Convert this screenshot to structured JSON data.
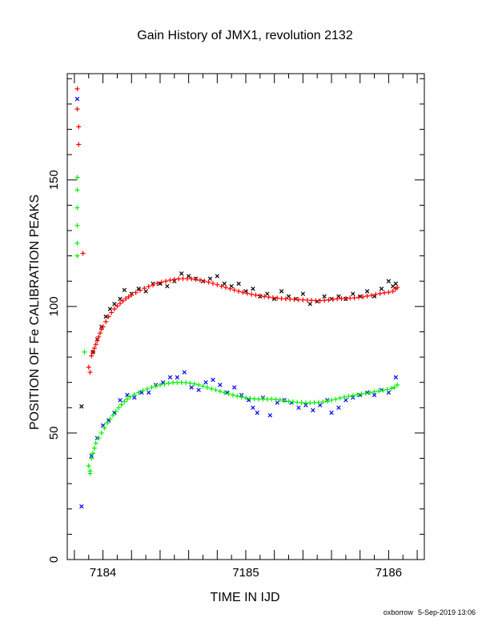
{
  "chart_data": {
    "type": "scatter",
    "title": "Gain History of JMX1, revolution 2132",
    "xlabel": "TIME IN IJD",
    "ylabel": "POSITION OF Fe CALIBRATION PEAKS",
    "xlim": [
      7183.75,
      7186.25
    ],
    "ylim": [
      0,
      192
    ],
    "xticks": [
      7184,
      7185,
      7186
    ],
    "yticks": [
      0,
      50,
      100,
      150
    ],
    "grid": false,
    "legend": "none",
    "series": [
      {
        "marker": "x",
        "color": "#000000",
        "points": [
          [
            7183.85,
            60.5
          ],
          [
            7183.93,
            82
          ],
          [
            7183.96,
            87
          ],
          [
            7183.99,
            92
          ],
          [
            7184.02,
            96
          ],
          [
            7184.05,
            99
          ],
          [
            7184.08,
            101
          ],
          [
            7184.12,
            103
          ],
          [
            7184.15,
            106.5
          ],
          [
            7184.2,
            105
          ],
          [
            7184.25,
            107
          ],
          [
            7184.3,
            106
          ],
          [
            7184.35,
            109
          ],
          [
            7184.4,
            109
          ],
          [
            7184.45,
            108
          ],
          [
            7184.5,
            110
          ],
          [
            7184.55,
            113
          ],
          [
            7184.6,
            112
          ],
          [
            7184.65,
            111
          ],
          [
            7184.7,
            110
          ],
          [
            7184.75,
            111
          ],
          [
            7184.8,
            112
          ],
          [
            7184.85,
            109
          ],
          [
            7184.9,
            108
          ],
          [
            7184.95,
            109
          ],
          [
            7185.0,
            106
          ],
          [
            7185.05,
            107
          ],
          [
            7185.1,
            104
          ],
          [
            7185.15,
            105
          ],
          [
            7185.2,
            103
          ],
          [
            7185.25,
            106
          ],
          [
            7185.3,
            104
          ],
          [
            7185.35,
            103
          ],
          [
            7185.4,
            105
          ],
          [
            7185.45,
            101
          ],
          [
            7185.5,
            102
          ],
          [
            7185.55,
            104
          ],
          [
            7185.6,
            103
          ],
          [
            7185.65,
            104
          ],
          [
            7185.7,
            103
          ],
          [
            7185.75,
            105
          ],
          [
            7185.8,
            104
          ],
          [
            7185.85,
            106
          ],
          [
            7185.9,
            104
          ],
          [
            7185.95,
            107
          ],
          [
            7186.0,
            110
          ],
          [
            7186.03,
            108
          ],
          [
            7186.05,
            109
          ]
        ]
      },
      {
        "marker": "x",
        "color": "#0000ff",
        "points": [
          [
            7183.82,
            182
          ],
          [
            7183.85,
            21
          ],
          [
            7183.92,
            41
          ],
          [
            7183.96,
            48
          ],
          [
            7184.0,
            53
          ],
          [
            7184.04,
            55
          ],
          [
            7184.08,
            58
          ],
          [
            7184.12,
            63
          ],
          [
            7184.17,
            65
          ],
          [
            7184.22,
            64
          ],
          [
            7184.27,
            66
          ],
          [
            7184.32,
            66
          ],
          [
            7184.37,
            69
          ],
          [
            7184.42,
            70
          ],
          [
            7184.47,
            72
          ],
          [
            7184.52,
            72
          ],
          [
            7184.57,
            74
          ],
          [
            7184.62,
            68
          ],
          [
            7184.67,
            67
          ],
          [
            7184.72,
            70
          ],
          [
            7184.77,
            71
          ],
          [
            7184.82,
            69
          ],
          [
            7184.87,
            66
          ],
          [
            7184.92,
            68
          ],
          [
            7184.97,
            65
          ],
          [
            7185.02,
            63
          ],
          [
            7185.05,
            60
          ],
          [
            7185.08,
            58
          ],
          [
            7185.12,
            64
          ],
          [
            7185.17,
            57
          ],
          [
            7185.22,
            62
          ],
          [
            7185.27,
            63
          ],
          [
            7185.32,
            62
          ],
          [
            7185.37,
            60
          ],
          [
            7185.42,
            61
          ],
          [
            7185.47,
            59
          ],
          [
            7185.52,
            61
          ],
          [
            7185.57,
            63
          ],
          [
            7185.6,
            58
          ],
          [
            7185.65,
            60
          ],
          [
            7185.7,
            63
          ],
          [
            7185.75,
            64
          ],
          [
            7185.8,
            65
          ],
          [
            7185.85,
            66
          ],
          [
            7185.9,
            65
          ],
          [
            7185.95,
            67
          ],
          [
            7186.0,
            66
          ],
          [
            7186.05,
            72
          ]
        ]
      },
      {
        "marker": "+",
        "color": "#ff0000",
        "points": [
          [
            7183.82,
            186
          ],
          [
            7183.82,
            178
          ],
          [
            7183.83,
            171
          ],
          [
            7183.83,
            164
          ],
          [
            7183.86,
            121
          ],
          [
            7183.9,
            76
          ],
          [
            7183.91,
            74
          ],
          [
            7183.92,
            80.5
          ],
          [
            7183.93,
            82
          ],
          [
            7183.94,
            83.5
          ],
          [
            7183.95,
            85
          ],
          [
            7183.96,
            86.5
          ],
          [
            7183.97,
            88
          ],
          [
            7183.98,
            89.5
          ],
          [
            7183.99,
            91
          ],
          [
            7184.0,
            92
          ],
          [
            7184.02,
            94
          ],
          [
            7184.04,
            96
          ],
          [
            7184.06,
            97.6
          ],
          [
            7184.08,
            99
          ],
          [
            7184.1,
            100.2
          ],
          [
            7184.12,
            101.2
          ],
          [
            7184.14,
            102.2
          ],
          [
            7184.16,
            103.1
          ],
          [
            7184.18,
            103.8
          ],
          [
            7184.2,
            104.6
          ],
          [
            7184.23,
            105.5
          ],
          [
            7184.26,
            106.4
          ],
          [
            7184.29,
            107.2
          ],
          [
            7184.32,
            107.9
          ],
          [
            7184.35,
            108.5
          ],
          [
            7184.38,
            109.1
          ],
          [
            7184.41,
            109.6
          ],
          [
            7184.44,
            110
          ],
          [
            7184.47,
            110.4
          ],
          [
            7184.5,
            110.7
          ],
          [
            7184.53,
            110.9
          ],
          [
            7184.56,
            111
          ],
          [
            7184.59,
            111
          ],
          [
            7184.62,
            110.9
          ],
          [
            7184.65,
            110.7
          ],
          [
            7184.68,
            110.4
          ],
          [
            7184.71,
            110
          ],
          [
            7184.74,
            109.6
          ],
          [
            7184.77,
            109.1
          ],
          [
            7184.8,
            108.6
          ],
          [
            7184.83,
            108
          ],
          [
            7184.86,
            107.5
          ],
          [
            7184.89,
            107
          ],
          [
            7184.92,
            106.5
          ],
          [
            7184.95,
            106
          ],
          [
            7184.98,
            105.6
          ],
          [
            7185.01,
            105.2
          ],
          [
            7185.04,
            104.8
          ],
          [
            7185.07,
            104.5
          ],
          [
            7185.1,
            104.2
          ],
          [
            7185.13,
            103.9
          ],
          [
            7185.16,
            103.7
          ],
          [
            7185.19,
            103.5
          ],
          [
            7185.22,
            103.3
          ],
          [
            7185.25,
            103.1
          ],
          [
            7185.28,
            103
          ],
          [
            7185.31,
            102.9
          ],
          [
            7185.34,
            102.8
          ],
          [
            7185.37,
            102.7
          ],
          [
            7185.4,
            102.6
          ],
          [
            7185.43,
            102.5
          ],
          [
            7185.46,
            102.4
          ],
          [
            7185.49,
            102.3
          ],
          [
            7185.52,
            102.3
          ],
          [
            7185.55,
            102.4
          ],
          [
            7185.58,
            102.6
          ],
          [
            7185.61,
            102.8
          ],
          [
            7185.64,
            103
          ],
          [
            7185.67,
            103.1
          ],
          [
            7185.7,
            103.2
          ],
          [
            7185.73,
            103.3
          ],
          [
            7185.76,
            103.4
          ],
          [
            7185.79,
            103.6
          ],
          [
            7185.82,
            103.8
          ],
          [
            7185.85,
            104.1
          ],
          [
            7185.88,
            104.4
          ],
          [
            7185.91,
            104.8
          ],
          [
            7185.94,
            105.1
          ],
          [
            7185.97,
            105.4
          ],
          [
            7186.0,
            105.6
          ],
          [
            7186.03,
            106
          ],
          [
            7186.05,
            107
          ],
          [
            7186.06,
            107.5
          ]
        ]
      },
      {
        "marker": "+",
        "color": "#00ee00",
        "points": [
          [
            7183.82,
            151
          ],
          [
            7183.82,
            146
          ],
          [
            7183.82,
            139
          ],
          [
            7183.82,
            132
          ],
          [
            7183.82,
            125
          ],
          [
            7183.82,
            120
          ],
          [
            7183.87,
            82
          ],
          [
            7183.9,
            37
          ],
          [
            7183.91,
            35
          ],
          [
            7183.91,
            34
          ],
          [
            7183.92,
            40
          ],
          [
            7183.93,
            42
          ],
          [
            7183.94,
            44
          ],
          [
            7183.95,
            46
          ],
          [
            7183.97,
            48
          ],
          [
            7183.99,
            50
          ],
          [
            7184.01,
            52
          ],
          [
            7184.03,
            54
          ],
          [
            7184.05,
            55.5
          ],
          [
            7184.07,
            57
          ],
          [
            7184.09,
            58.5
          ],
          [
            7184.11,
            60
          ],
          [
            7184.13,
            61.2
          ],
          [
            7184.15,
            62.4
          ],
          [
            7184.17,
            63.4
          ],
          [
            7184.19,
            64.3
          ],
          [
            7184.22,
            65.2
          ],
          [
            7184.25,
            66
          ],
          [
            7184.28,
            66.8
          ],
          [
            7184.31,
            67.4
          ],
          [
            7184.34,
            68
          ],
          [
            7184.37,
            68.5
          ],
          [
            7184.4,
            69
          ],
          [
            7184.43,
            69.4
          ],
          [
            7184.46,
            69.7
          ],
          [
            7184.49,
            69.9
          ],
          [
            7184.52,
            70
          ],
          [
            7184.55,
            70
          ],
          [
            7184.58,
            69.9
          ],
          [
            7184.61,
            69.7
          ],
          [
            7184.64,
            69.4
          ],
          [
            7184.67,
            69
          ],
          [
            7184.7,
            68.5
          ],
          [
            7184.73,
            68
          ],
          [
            7184.76,
            67.5
          ],
          [
            7184.79,
            67
          ],
          [
            7184.82,
            66.5
          ],
          [
            7184.85,
            66
          ],
          [
            7184.88,
            65.5
          ],
          [
            7184.91,
            65
          ],
          [
            7184.94,
            64.6
          ],
          [
            7184.97,
            64.2
          ],
          [
            7185.0,
            63.9
          ],
          [
            7185.03,
            63.7
          ],
          [
            7185.06,
            63.5
          ],
          [
            7185.09,
            63.4
          ],
          [
            7185.12,
            63.4
          ],
          [
            7185.15,
            63.4
          ],
          [
            7185.18,
            63.4
          ],
          [
            7185.21,
            63.3
          ],
          [
            7185.24,
            63.1
          ],
          [
            7185.27,
            62.8
          ],
          [
            7185.3,
            62.5
          ],
          [
            7185.33,
            62.3
          ],
          [
            7185.36,
            62.1
          ],
          [
            7185.39,
            62
          ],
          [
            7185.42,
            61.9
          ],
          [
            7185.45,
            61.9
          ],
          [
            7185.48,
            62
          ],
          [
            7185.51,
            62.1
          ],
          [
            7185.54,
            62.3
          ],
          [
            7185.57,
            62.6
          ],
          [
            7185.6,
            63
          ],
          [
            7185.63,
            63.4
          ],
          [
            7185.66,
            63.8
          ],
          [
            7185.69,
            64.2
          ],
          [
            7185.72,
            64.5
          ],
          [
            7185.75,
            64.8
          ],
          [
            7185.78,
            65.1
          ],
          [
            7185.81,
            65.4
          ],
          [
            7185.84,
            65.7
          ],
          [
            7185.87,
            66
          ],
          [
            7185.9,
            66.3
          ],
          [
            7185.93,
            66.6
          ],
          [
            7185.96,
            66.9
          ],
          [
            7185.99,
            67.2
          ],
          [
            7186.02,
            67.6
          ],
          [
            7186.04,
            68
          ],
          [
            7186.06,
            69
          ]
        ]
      }
    ]
  },
  "footer": {
    "user": "oxborrow",
    "timestamp": "5-Sep-2019 13:06"
  }
}
